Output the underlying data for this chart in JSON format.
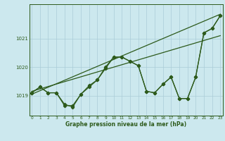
{
  "xlabel": "Graphe pression niveau de la mer (hPa)",
  "background_color": "#cce8ee",
  "line_color": "#2d5a1b",
  "grid_color": "#aaccd8",
  "x_ticks": [
    0,
    1,
    2,
    3,
    4,
    5,
    6,
    7,
    8,
    9,
    10,
    11,
    12,
    13,
    14,
    15,
    16,
    17,
    18,
    19,
    20,
    21,
    22,
    23
  ],
  "y_ticks": [
    1019,
    1020,
    1021
  ],
  "ylim": [
    1018.3,
    1022.2
  ],
  "xlim": [
    -0.3,
    23.3
  ],
  "series1": [
    1019.1,
    1019.3,
    1019.1,
    1019.1,
    1018.7,
    1018.6,
    1019.05,
    1019.3,
    1019.55,
    1019.95,
    1020.35,
    1020.35,
    1020.2,
    1020.05,
    1019.15,
    1019.1,
    1019.4,
    1019.65,
    1018.9,
    1018.9,
    1019.65,
    1021.2,
    1021.35,
    1021.8
  ],
  "series2": [
    1019.1,
    1019.3,
    1019.1,
    1019.1,
    1018.65,
    1018.65,
    1019.05,
    1019.35,
    1019.55,
    1020.0,
    1020.35,
    1020.35,
    1020.2,
    1020.05,
    1019.15,
    1019.1,
    1019.4,
    1019.65,
    1018.9,
    1018.9,
    1019.65,
    1021.2,
    1021.35,
    1021.8
  ],
  "trend1_x": [
    0,
    23
  ],
  "trend1_y": [
    1019.05,
    1021.85
  ],
  "trend2_x": [
    0,
    23
  ],
  "trend2_y": [
    1019.15,
    1021.1
  ]
}
